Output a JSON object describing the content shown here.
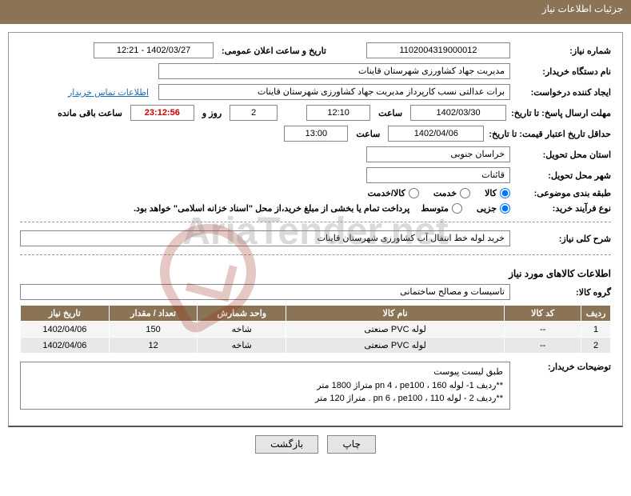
{
  "header": {
    "title": "جزئیات اطلاعات نیاز"
  },
  "watermark": "AriaTender.net",
  "fields": {
    "need_number_label": "شماره نیاز:",
    "need_number": "1102004319000012",
    "announce_label": "تاریخ و ساعت اعلان عمومی:",
    "announce_value": "1402/03/27 - 12:21",
    "buyer_label": "نام دستگاه خریدار:",
    "buyer_value": "مدیریت جهاد کشاورزی شهرستان قاینات",
    "requester_label": "ایجاد کننده درخواست:",
    "requester_value": "برات عدالتی نسب کارپرداز مدیریت جهاد کشاورزی شهرستان قاینات",
    "contact_link": "اطلاعات تماس خریدار",
    "deadline_label": "مهلت ارسال پاسخ: تا تاریخ:",
    "deadline_date": "1402/03/30",
    "time_word": "ساعت",
    "deadline_time": "12:10",
    "days_left": "2",
    "day_and": "روز و",
    "timer": "23:12:56",
    "remaining": "ساعت باقی مانده",
    "validity_label": "حداقل تاریخ اعتبار قیمت: تا تاریخ:",
    "validity_date": "1402/04/06",
    "validity_time": "13:00",
    "province_label": "استان محل تحویل:",
    "province_value": "خراسان جنوبی",
    "city_label": "شهر محل تحویل:",
    "city_value": "قائنات",
    "class_label": "طبقه بندی موضوعی:",
    "class_opts": [
      "کالا",
      "خدمت",
      "کالا/خدمت"
    ],
    "process_label": "نوع فرآیند خرید:",
    "process_opts": [
      "جزیی",
      "متوسط"
    ],
    "process_note": "پرداخت تمام یا بخشی از مبلغ خرید،از محل \"اسناد خزانه اسلامی\" خواهد بود.",
    "desc_label": "شرح کلی نیاز:",
    "desc_value": "خرید لوله خط انتقال آب کشاورزی شهرستان قاینات",
    "goods_header": "اطلاعات کالاهای مورد نیاز",
    "group_label": "گروه کالا:",
    "group_value": "تاسیسات و مصالح ساختمانی",
    "buyer_remarks_label": "توضیحات خریدار:",
    "buyer_remarks": [
      "طبق لیست پیوست",
      "**ردیف 1- لوله 160 ، pn 4 ، pe100   متراژ 1800 متر",
      "**ردیف 2 - لوله 110 ، pn 6 ، pe100 .  متراژ 120 متر"
    ]
  },
  "table": {
    "columns": [
      "ردیف",
      "کد کالا",
      "نام کالا",
      "واحد شمارش",
      "تعداد / مقدار",
      "تاریخ نیاز"
    ],
    "col_widths": [
      "5%",
      "13%",
      "37%",
      "15%",
      "15%",
      "15%"
    ],
    "rows": [
      [
        "1",
        "--",
        "لوله PVC صنعتی",
        "شاخه",
        "150",
        "1402/04/06"
      ],
      [
        "2",
        "--",
        "لوله PVC صنعتی",
        "شاخه",
        "12",
        "1402/04/06"
      ]
    ]
  },
  "buttons": {
    "print": "چاپ",
    "back": "بازگشت"
  },
  "colors": {
    "header_bg": "#8b7355",
    "link": "#1a6eb8",
    "timer": "#c00"
  }
}
